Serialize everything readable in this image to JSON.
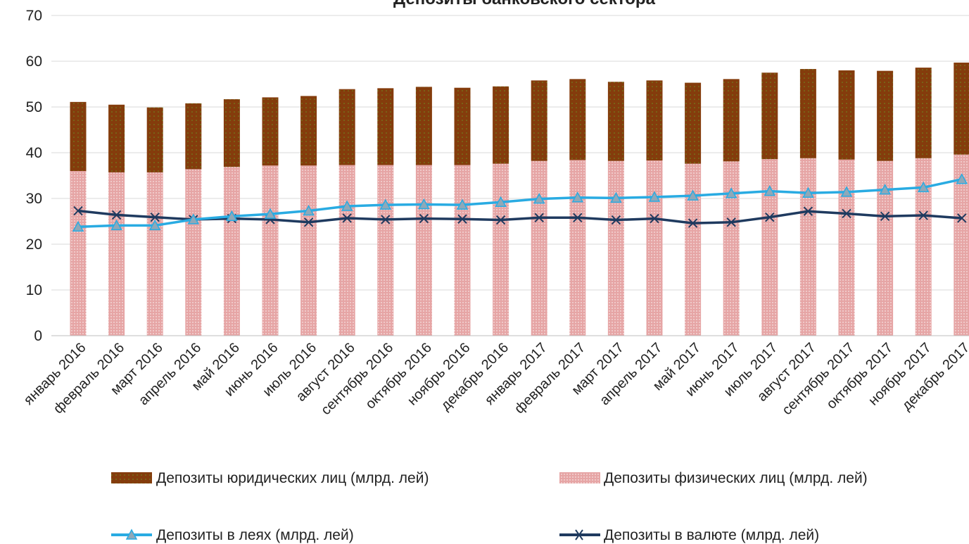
{
  "chart_data": {
    "type": "bar",
    "title": "Депозиты банковского сектора",
    "categories": [
      "январь 2016",
      "февраль 2016",
      "март 2016",
      "апрель 2016",
      "май 2016",
      "июнь 2016",
      "июль 2016",
      "август 2016",
      "сентябрь 2016",
      "октябрь 2016",
      "ноябрь 2016",
      "декабрь 2016",
      "январь 2017",
      "февраль 2017",
      "март 2017",
      "апрель 2017",
      "май 2017",
      "июнь 2017",
      "июль 2017",
      "август 2017",
      "сентябрь 2017",
      "октябрь 2017",
      "ноябрь 2017",
      "декабрь 2017"
    ],
    "ylim": [
      0,
      70
    ],
    "yticks": [
      0,
      10,
      20,
      30,
      40,
      50,
      60,
      70
    ],
    "grid": true,
    "legend_position": "bottom",
    "series": [
      {
        "name": "Депозиты юридических лиц (млрд. лей)",
        "kind": "stacked-bar",
        "color": "#843C0C",
        "values": [
          15.1,
          14.8,
          14.2,
          14.4,
          14.8,
          14.9,
          15.2,
          16.6,
          16.8,
          17.1,
          16.9,
          16.9,
          17.6,
          17.7,
          17.3,
          17.5,
          17.7,
          18.0,
          18.9,
          19.5,
          19.5,
          19.7,
          19.8,
          20.1
        ]
      },
      {
        "name": "Депозиты физических лиц (млрд. лей)",
        "kind": "stacked-bar",
        "color": "#E6A5A5",
        "values": [
          36.0,
          35.7,
          35.7,
          36.4,
          36.9,
          37.2,
          37.2,
          37.3,
          37.3,
          37.3,
          37.3,
          37.6,
          38.2,
          38.4,
          38.2,
          38.3,
          37.6,
          38.1,
          38.6,
          38.8,
          38.5,
          38.2,
          38.8,
          39.6
        ]
      },
      {
        "name": "Депозиты в леях (млрд. лей)",
        "kind": "line",
        "marker": "triangle",
        "color": "#29ABE2",
        "values": [
          23.8,
          24.1,
          24.1,
          25.4,
          26.1,
          26.6,
          27.3,
          28.3,
          28.6,
          28.7,
          28.6,
          29.2,
          29.9,
          30.2,
          30.1,
          30.3,
          30.6,
          31.1,
          31.6,
          31.2,
          31.4,
          31.9,
          32.4,
          34.2
        ]
      },
      {
        "name": "Депозиты в валюте (млрд. лей)",
        "kind": "line",
        "marker": "x",
        "color": "#1F3A5F",
        "values": [
          27.3,
          26.4,
          25.9,
          25.4,
          25.6,
          25.4,
          24.8,
          25.7,
          25.4,
          25.6,
          25.5,
          25.3,
          25.8,
          25.8,
          25.3,
          25.6,
          24.6,
          24.8,
          25.9,
          27.2,
          26.7,
          26.1,
          26.3,
          25.7
        ]
      }
    ]
  }
}
